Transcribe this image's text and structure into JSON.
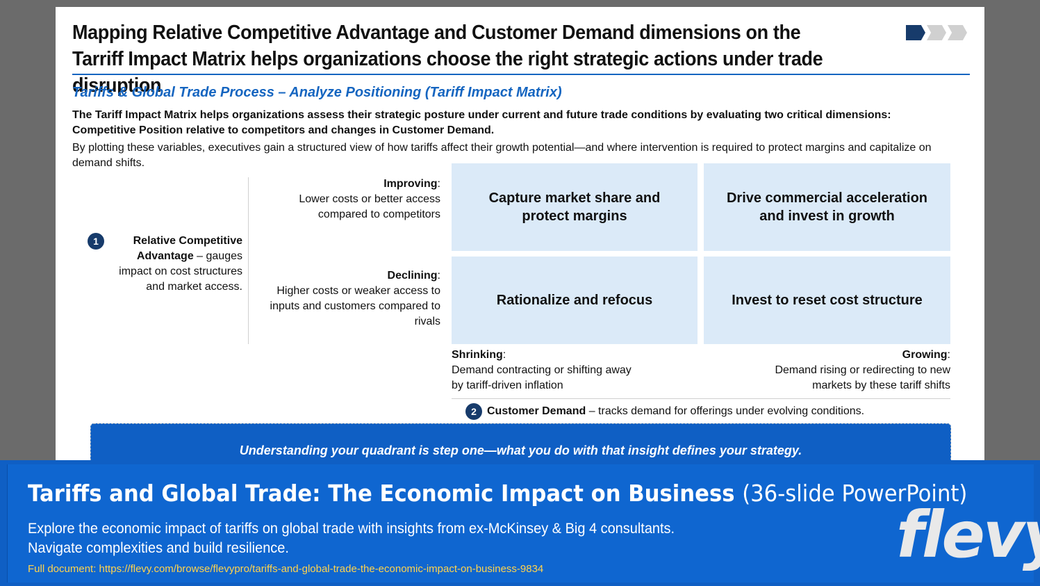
{
  "slide": {
    "title": "Mapping Relative Competitive Advantage and Customer Demand dimensions on the Tarriff Impact Matrix helps organizations choose the right strategic actions under trade disruption",
    "subtitle": "Tariffs & Global Trade Process – Analyze Positioning (Tariff Impact Matrix)",
    "intro_bold": "The Tariff Impact Matrix helps organizations assess their strategic posture under current and future trade conditions by evaluating two critical dimensions: Competitive Position relative to competitors and changes in Customer Demand.",
    "intro": "By plotting these variables, executives gain a structured view of how tariffs affect their growth potential—and where intervention is required to protect margins and capitalize on demand shifts.",
    "progress": {
      "total_steps": 3,
      "active_step": 1,
      "active_color": "#173b6b",
      "inactive_color": "#d0d0d0"
    }
  },
  "y_axis": {
    "badge": "1",
    "title_bold": "Relative Competitive Advantage",
    "title_rest": " – gauges impact on cost structures and market access.",
    "improving_label": "Improving",
    "improving_desc": "Lower costs or better access compared to competitors",
    "declining_label": "Declining",
    "declining_desc": "Higher costs or weaker access to inputs and customers compared to rivals"
  },
  "x_axis": {
    "badge": "2",
    "title_bold": "Customer Demand",
    "title_rest": " – tracks demand for offerings under evolving conditions.",
    "shrinking_label": "Shrinking",
    "shrinking_desc": "Demand contracting or shifting away by tariff-driven inflation",
    "growing_label": "Growing",
    "growing_desc": "Demand rising or redirecting to new markets by these tariff shifts"
  },
  "quadrants": {
    "top_left": "Capture market share and protect margins",
    "top_right": "Drive commercial acceleration and invest in growth",
    "bottom_left": "Rationalize and refocus",
    "bottom_right": "Invest to reset cost structure",
    "fill_color": "#dbeaf8"
  },
  "callout": "Understanding your quadrant is step one—what you do with that insight defines your strategy.",
  "footer": {
    "title": "Tariffs and Global Trade: The Economic Impact on Business",
    "title_suffix": "(36-slide PowerPoint)",
    "description": "Explore the economic impact of tariffs on global trade with insights from ex-McKinsey & Big 4 consultants. Navigate complexities and build resilience.",
    "link": "Full document: https://flevy.com/browse/flevypro/tariffs-and-global-trade-the-economic-impact-on-business-9834",
    "logo": "flevy",
    "brand_color": "#0f66d0",
    "link_color": "#ffd34d"
  }
}
